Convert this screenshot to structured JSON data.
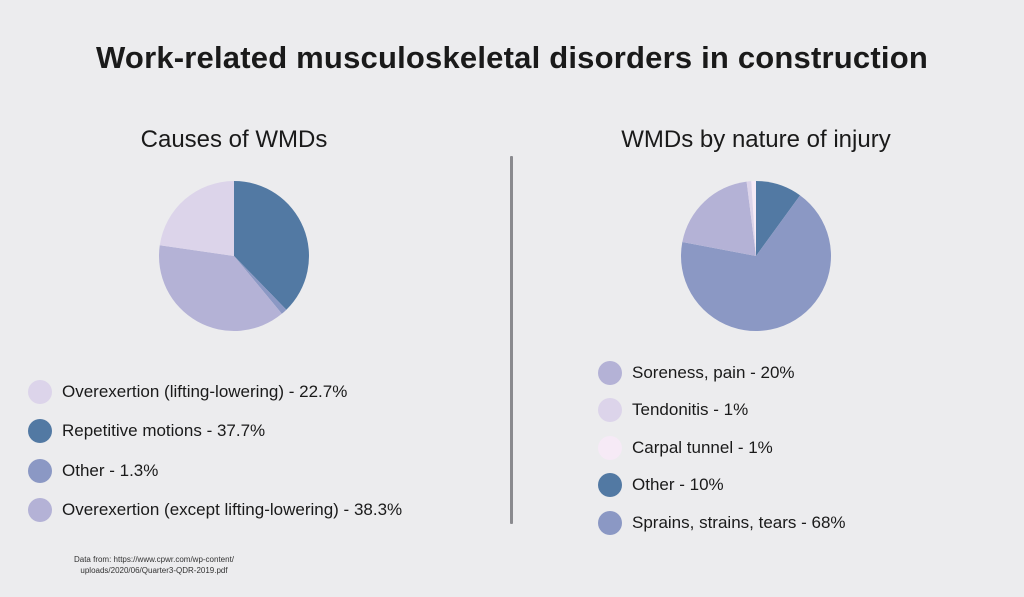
{
  "title": "Work-related musculoskeletal disorders in construction",
  "source": {
    "line1": "Data from: https://www.cpwr.com/wp-content/",
    "line2": "uploads/2020/06/Quarter3-QDR-2019.pdf"
  },
  "chart_data": [
    {
      "type": "pie",
      "title": "Causes of WMDs",
      "start": "12 o'clock, clockwise",
      "slices": [
        {
          "label": "Repetitive motions - 37.7%",
          "value": 37.7,
          "color": "#5279a3"
        },
        {
          "label": "Other - 1.3%",
          "value": 1.3,
          "color": "#8b98c4"
        },
        {
          "label": "Overexertion (except lifting-lowering) - 38.3%",
          "value": 38.3,
          "color": "#b4b2d6"
        },
        {
          "label": "Overexertion (lifting-lowering) - 22.7%",
          "value": 22.7,
          "color": "#dcd4ea"
        }
      ],
      "legend_order": [
        3,
        0,
        1,
        2
      ]
    },
    {
      "type": "pie",
      "title": "WMDs by nature of injury",
      "start": "12 o'clock, clockwise",
      "slices": [
        {
          "label": "Other - 10%",
          "value": 10,
          "color": "#5279a3"
        },
        {
          "label": "Sprains, strains, tears - 68%",
          "value": 68,
          "color": "#8b98c4"
        },
        {
          "label": "Soreness, pain - 20%",
          "value": 20,
          "color": "#b4b2d6"
        },
        {
          "label": "Tendonitis - 1%",
          "value": 1,
          "color": "#dcd4ea"
        },
        {
          "label": "Carpal tunnel - 1%",
          "value": 1,
          "color": "#f6eaf6"
        }
      ],
      "legend_order": [
        2,
        3,
        4,
        0,
        1
      ]
    }
  ]
}
